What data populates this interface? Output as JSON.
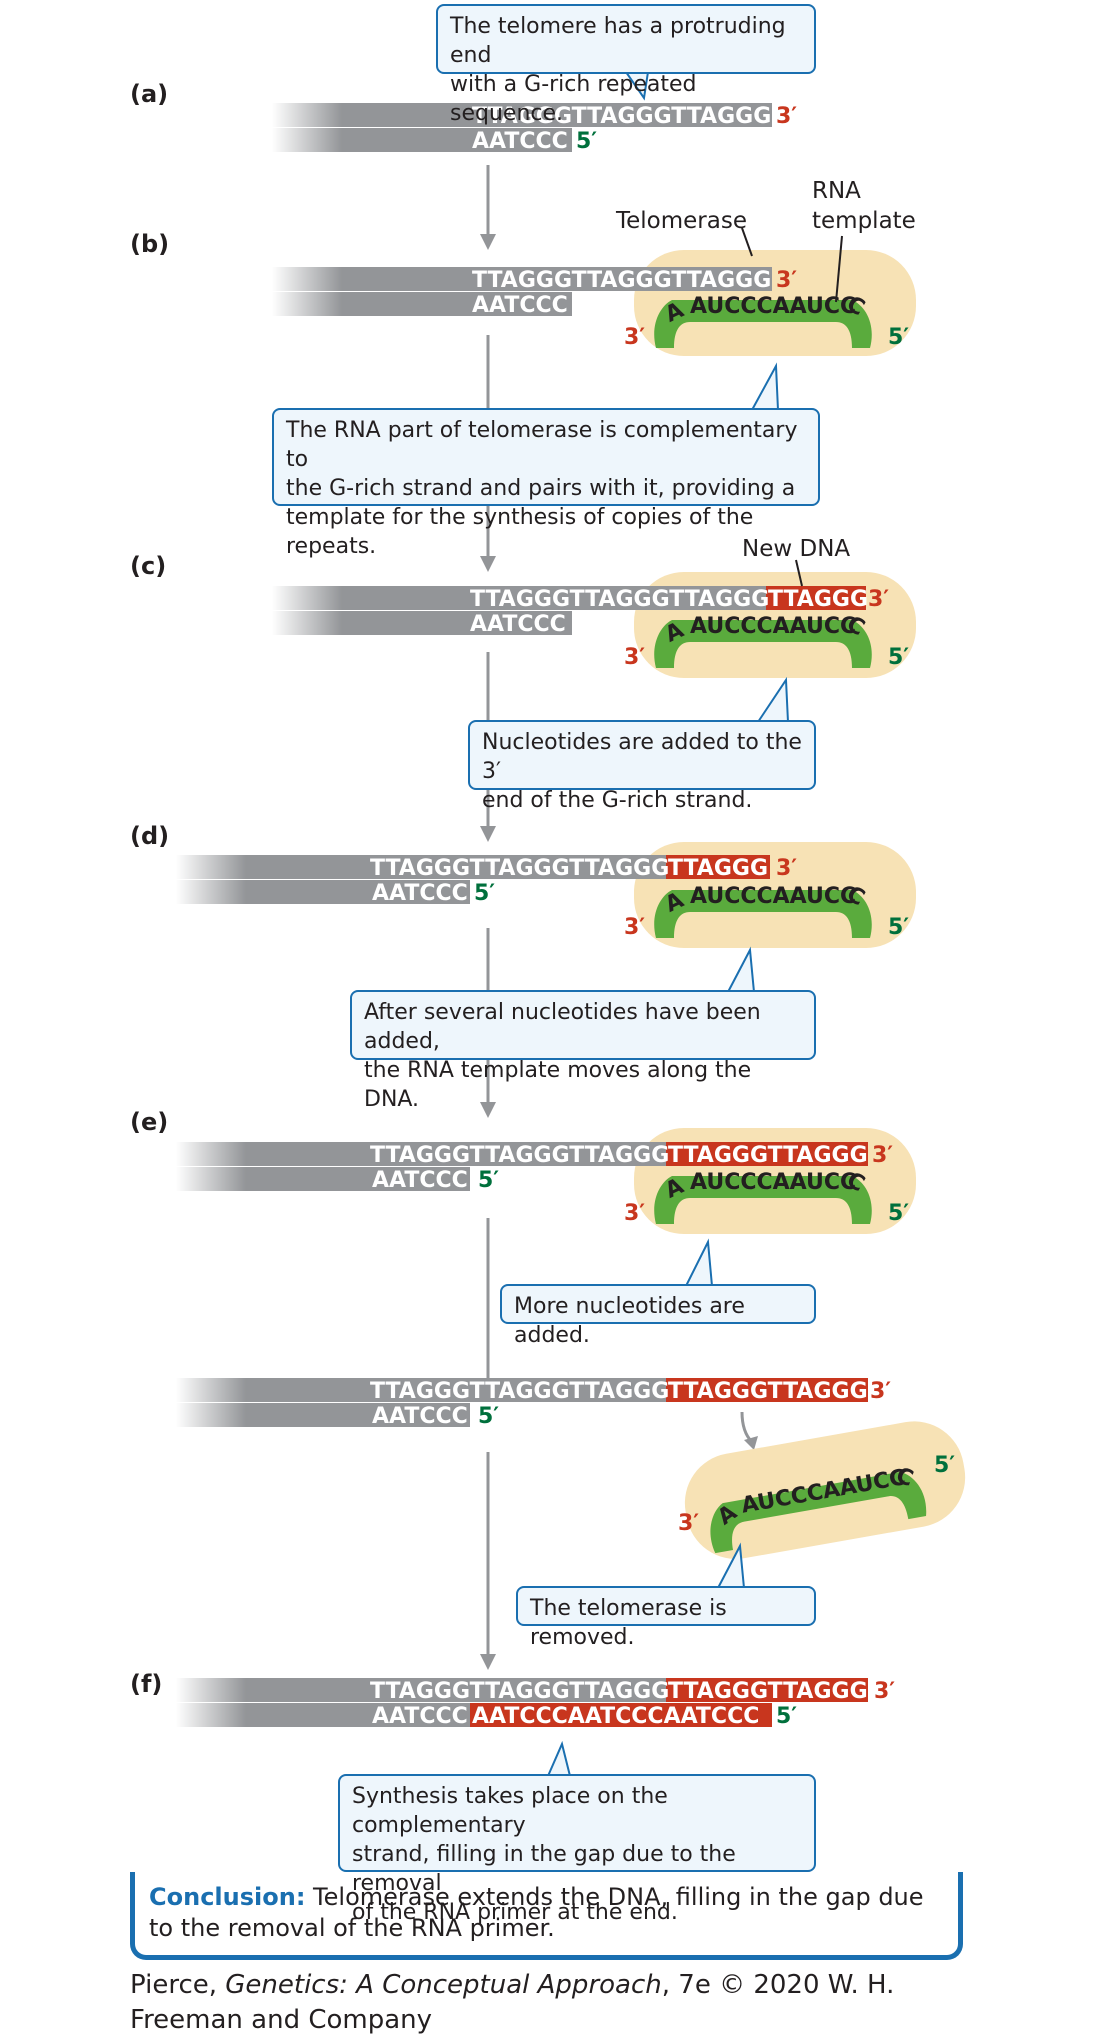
{
  "colors": {
    "strand": "#939598",
    "strand_light": "#c7c8ca",
    "new_dna": "#c8361e",
    "prime3": "#c8361e",
    "prime5": "#00703c",
    "rna": "#5aab3d",
    "telomerase": "#f7e2b5",
    "note_border": "#1a6fb0",
    "note_fill": "#eef6fc",
    "arrow": "#939598"
  },
  "panels": {
    "a": {
      "label": "(a)"
    },
    "b": {
      "label": "(b)"
    },
    "c": {
      "label": "(c)"
    },
    "d": {
      "label": "(d)"
    },
    "e": {
      "label": "(e)"
    },
    "f": {
      "label": "(f)"
    }
  },
  "labels": {
    "telomerase": "Telomerase",
    "rna_template_line1": "RNA",
    "rna_template_line2": "template",
    "new_dna": "New DNA"
  },
  "primes": {
    "three": "3′",
    "five": "5′"
  },
  "sequences": {
    "g_rich_a": "TTAGGGTTAGGGTTAGGG",
    "c_rich_short": "AATCCC",
    "old_top": "TTAGGGTTAGGGTTAGGG",
    "new_one": "TTAGGG",
    "new_two": "TTAGGGTTAGGG",
    "rna_A": "A",
    "rna_core": "AUCCCAAUCC",
    "rna_C": "C",
    "new_bottom": "AATCCCAATCCCAATCCC"
  },
  "notes": {
    "n1": [
      "The telomere has a protruding end",
      "with a G-rich repeated sequence."
    ],
    "n2": [
      "The RNA part of telomerase is complementary to",
      "the G-rich strand and pairs with it, providing a",
      "template for the synthesis of copies of the repeats."
    ],
    "n3": [
      "Nucleotides are added to the 3′",
      "end of the G-rich strand."
    ],
    "n4": [
      "After several nucleotides have been added,",
      "the RNA template moves along the DNA."
    ],
    "n5": [
      "More nucleotides are added."
    ],
    "n6": [
      "The telomerase is removed."
    ],
    "n7": [
      "Synthesis takes place on the complementary",
      "strand, filling in the gap due to the removal",
      "of the RNA primer at the end."
    ]
  },
  "conclusion": {
    "lead": "Conclusion:",
    "text": " Telomerase extends the DNA, filling in the gap due to the removal of the RNA primer."
  },
  "credit": {
    "pre": "Pierce, ",
    "title": "Genetics: A Conceptual Approach",
    "post": ", 7e © 2020 W. H. Freeman and Company"
  }
}
